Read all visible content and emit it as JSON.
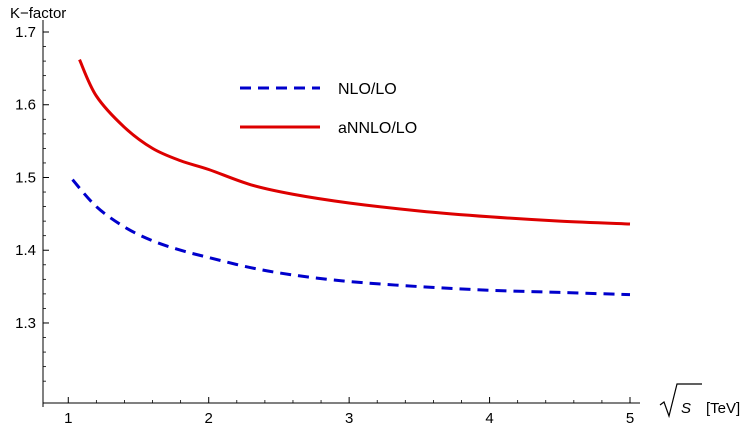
{
  "chart_data": {
    "type": "line",
    "ylabel": "K−factor",
    "xlabel_symbol": "S",
    "xlabel_unit": "[TeV]",
    "xlim": [
      0.82,
      5.0
    ],
    "ylim": [
      1.19,
      1.7
    ],
    "x_ticks": [
      1,
      2,
      3,
      4,
      5
    ],
    "x_tick_labels": [
      "1",
      "2",
      "3",
      "4",
      "5"
    ],
    "y_ticks": [
      1.3,
      1.4,
      1.5,
      1.6,
      1.7
    ],
    "y_tick_labels": [
      "1.3",
      "1.4",
      "1.5",
      "1.6",
      "1.7"
    ],
    "grid": false,
    "legend_position": "top-center",
    "series": [
      {
        "name": "NLO/LO",
        "color": "#0000cc",
        "style": "dashed",
        "x": [
          1.03,
          1.2,
          1.4,
          1.6,
          1.8,
          2.0,
          2.3,
          2.6,
          3.0,
          3.5,
          4.0,
          4.5,
          5.0
        ],
        "y": [
          1.497,
          1.46,
          1.432,
          1.413,
          1.4,
          1.39,
          1.376,
          1.366,
          1.357,
          1.35,
          1.345,
          1.342,
          1.339
        ]
      },
      {
        "name": "aNNLO/LO",
        "color": "#dd0000",
        "style": "solid",
        "x": [
          1.08,
          1.2,
          1.4,
          1.6,
          1.8,
          2.0,
          2.3,
          2.6,
          3.0,
          3.5,
          4.0,
          4.5,
          5.0
        ],
        "y": [
          1.662,
          1.612,
          1.569,
          1.54,
          1.523,
          1.511,
          1.49,
          1.477,
          1.465,
          1.454,
          1.446,
          1.44,
          1.436
        ]
      }
    ]
  }
}
